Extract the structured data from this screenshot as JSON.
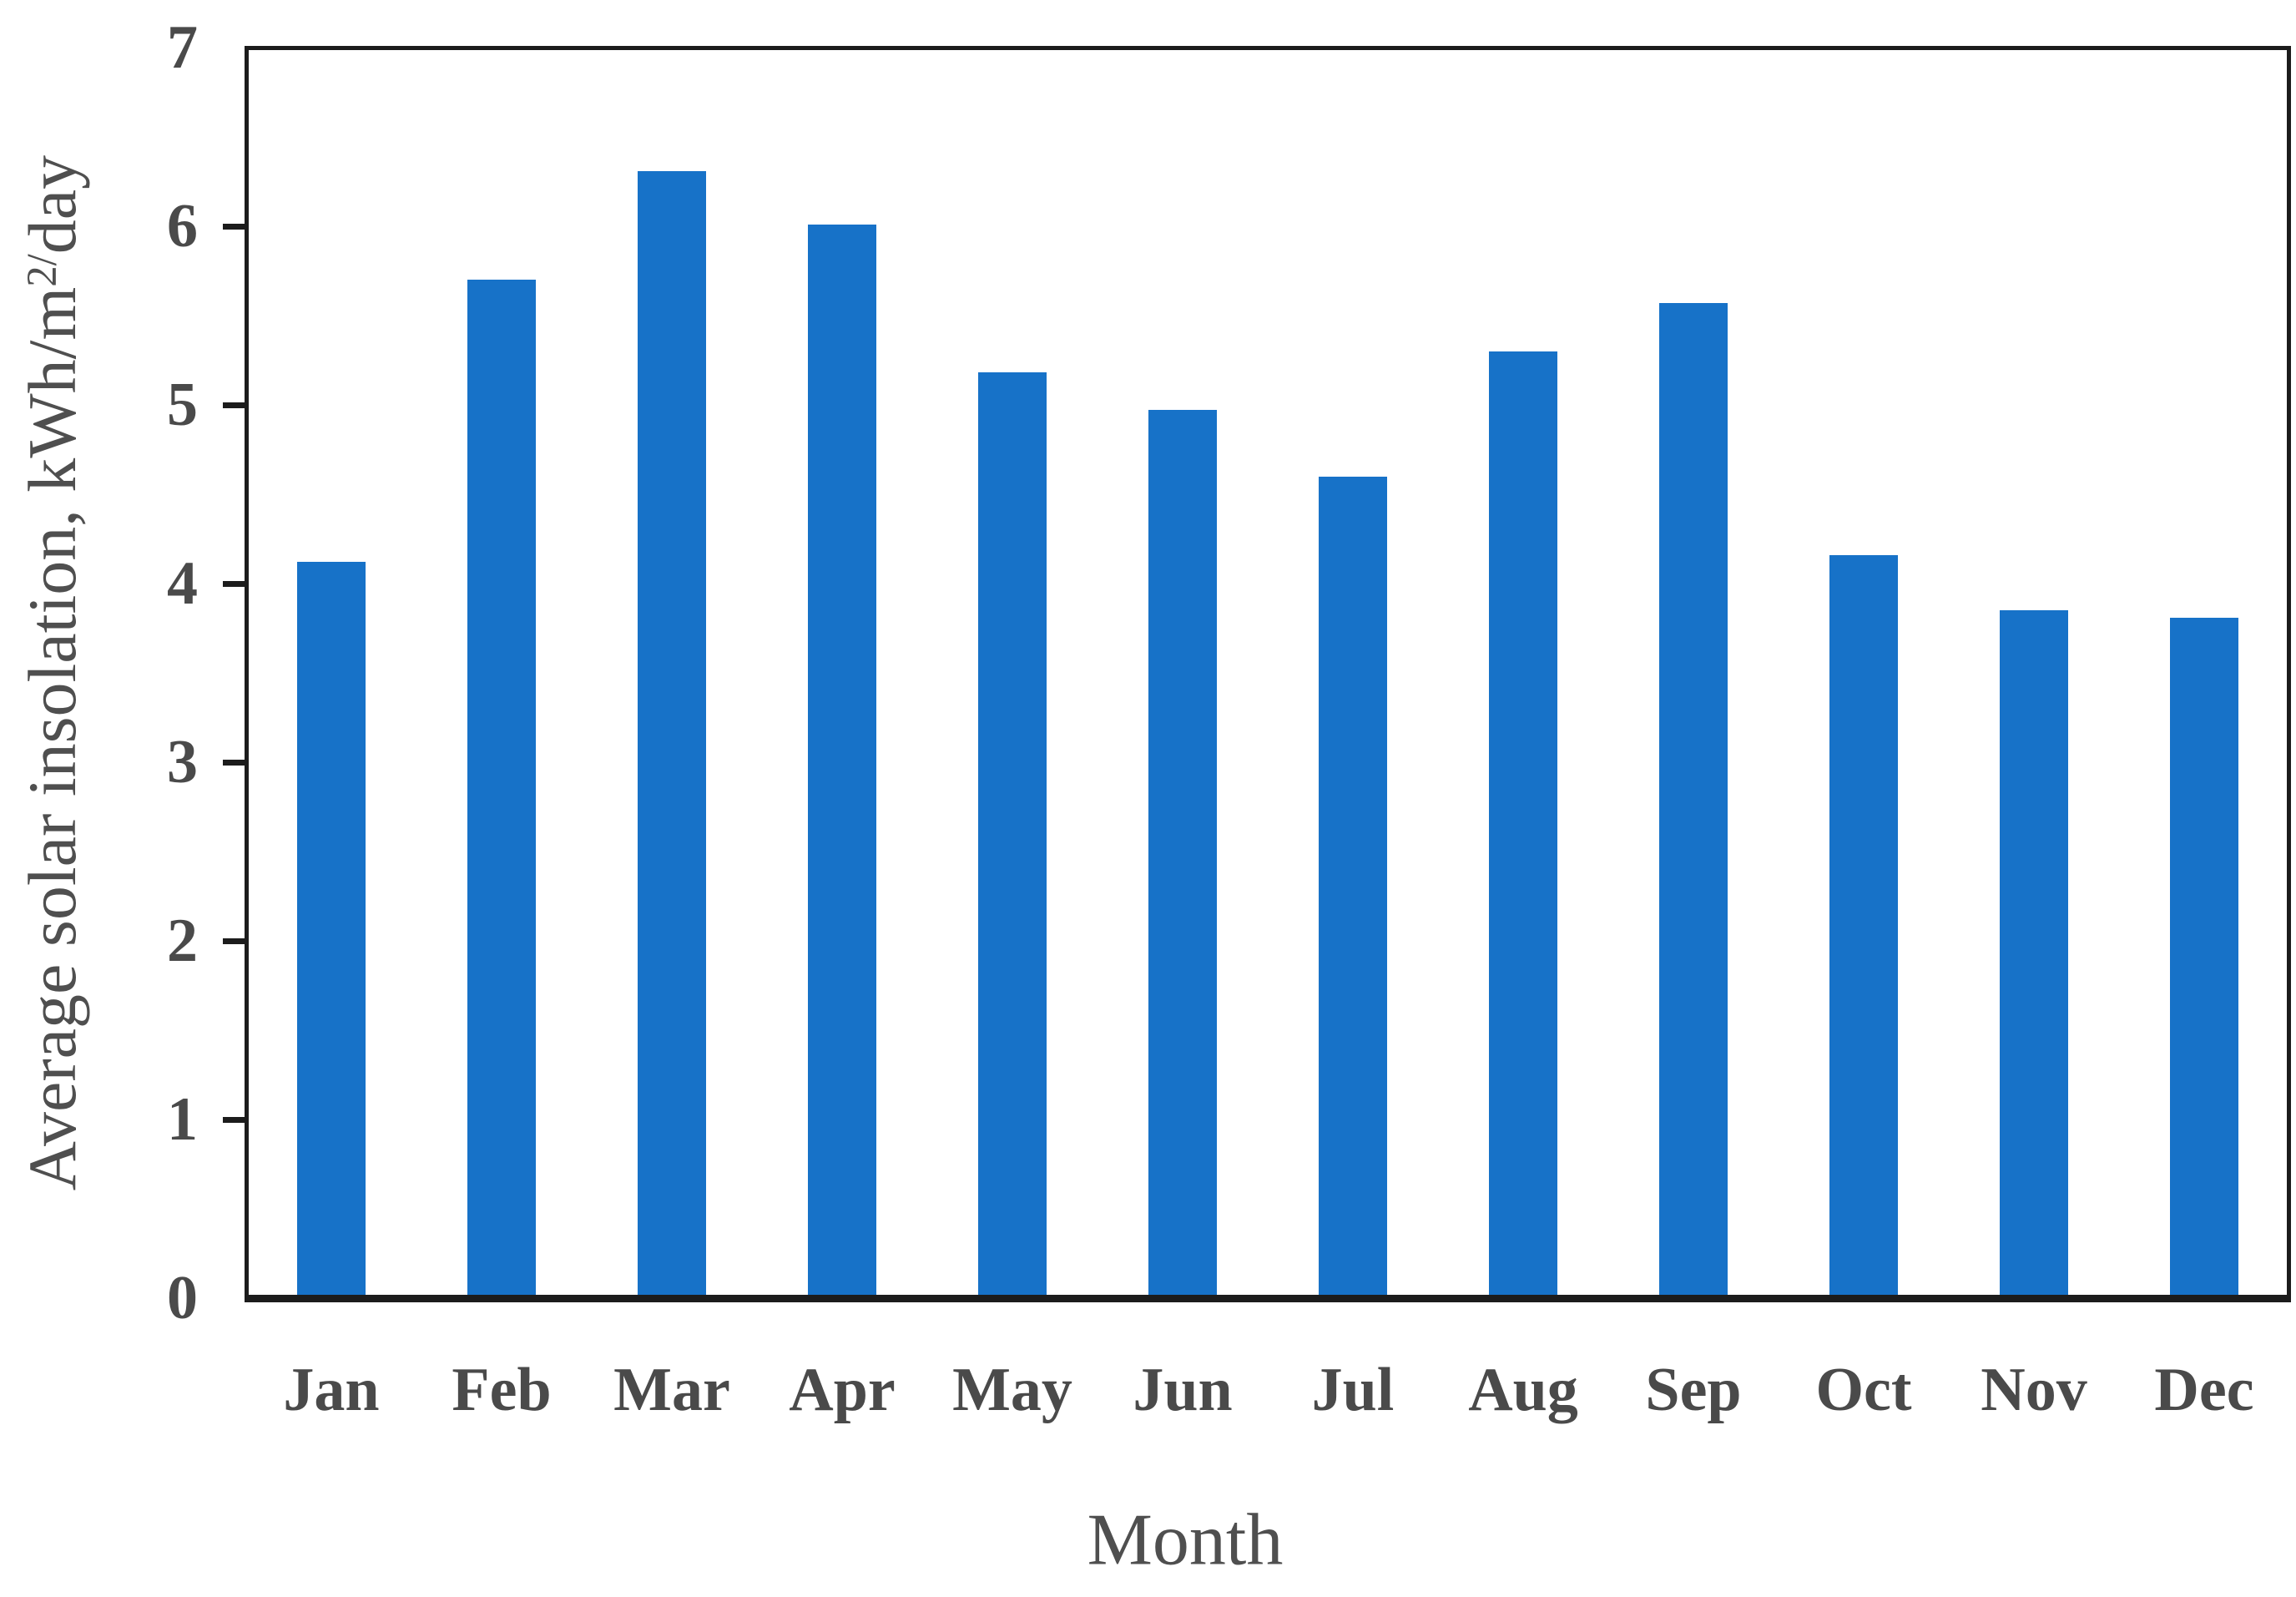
{
  "figure": {
    "y_axis_title_prefix": "Average solar insolation, kWh/m",
    "y_axis_title_sup": "2/",
    "y_axis_title_suffix": "day",
    "x_axis_title": "Month"
  },
  "chart_data": {
    "type": "bar",
    "categories": [
      "Jan",
      "Feb",
      "Mar",
      "Apr",
      "May",
      "Jun",
      "Jul",
      "Aug",
      "Sep",
      "Oct",
      "Nov",
      "Dec"
    ],
    "values": [
      4.12,
      5.7,
      6.31,
      6.01,
      5.18,
      4.97,
      4.6,
      5.3,
      5.57,
      4.16,
      3.85,
      3.81
    ],
    "title": "",
    "xlabel": "Month",
    "ylabel": "Average solar insolation, kWh/m2/day",
    "ylim": [
      0,
      7
    ],
    "y_ticks": [
      0,
      1,
      2,
      3,
      4,
      5,
      6,
      7
    ],
    "grid": false,
    "legend": false,
    "bar_color": "#1772C8",
    "axis_color": "#1C1C1C",
    "text_color": "#4A4A4A"
  }
}
